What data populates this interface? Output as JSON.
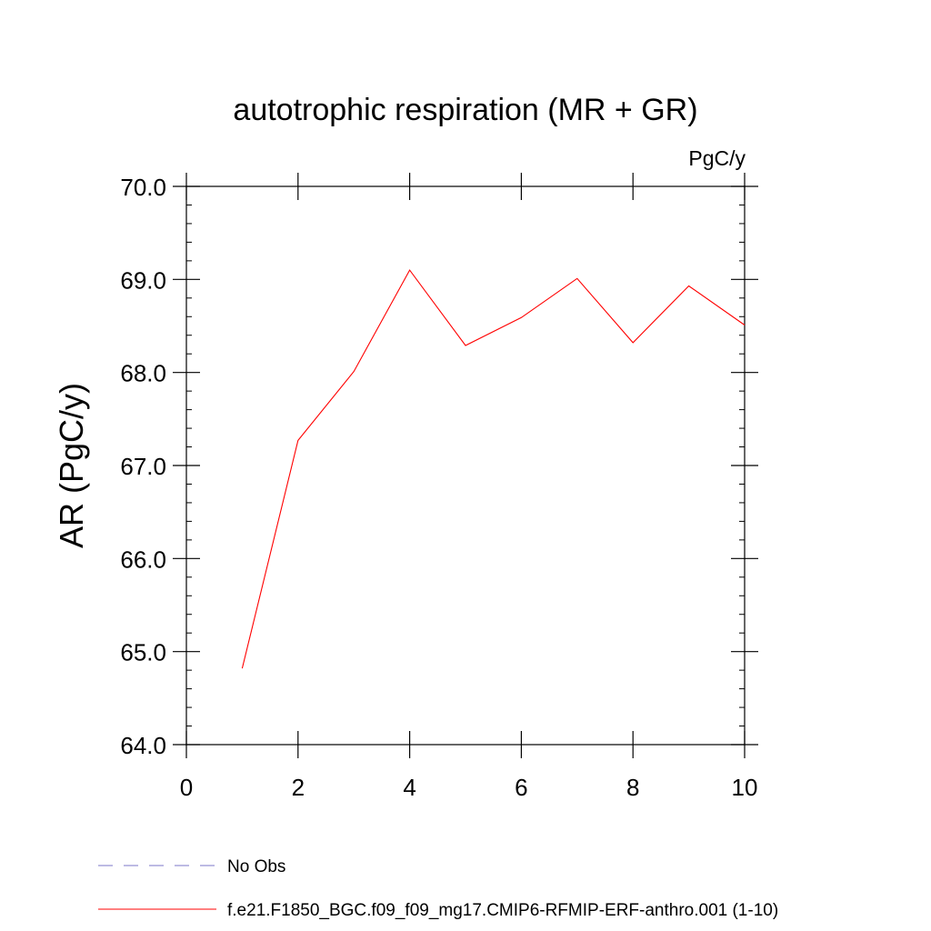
{
  "chart_data": {
    "type": "line",
    "title": "autotrophic respiration (MR + GR)",
    "units_label": "PgC/y",
    "xlabel": "",
    "ylabel": "AR  (PgC/y)",
    "xlim": [
      0,
      10
    ],
    "ylim": [
      64.0,
      70.0
    ],
    "x_ticks": [
      "0",
      "2",
      "4",
      "6",
      "8",
      "10"
    ],
    "y_ticks": [
      "64.0",
      "65.0",
      "66.0",
      "67.0",
      "68.0",
      "69.0",
      "70.0"
    ],
    "grid": false,
    "series": [
      {
        "name": "f.e21.F1850_BGC.f09_f09_mg17.CMIP6-RFMIP-ERF-anthro.001 (1-10)",
        "color": "#ff0000",
        "style": "solid",
        "x": [
          1,
          2,
          3,
          4,
          5,
          6,
          7,
          8,
          9,
          10
        ],
        "y": [
          64.82,
          67.27,
          68.01,
          69.1,
          68.29,
          68.59,
          69.01,
          68.32,
          68.93,
          68.51
        ]
      }
    ],
    "legend": [
      {
        "label": "No Obs",
        "color": "#7b74c8",
        "style": "dashed"
      },
      {
        "label": "f.e21.F1850_BGC.f09_f09_mg17.CMIP6-RFMIP-ERF-anthro.001 (1-10)",
        "color": "#ff0000",
        "style": "solid"
      }
    ],
    "legend_placement": "bottom-left"
  }
}
